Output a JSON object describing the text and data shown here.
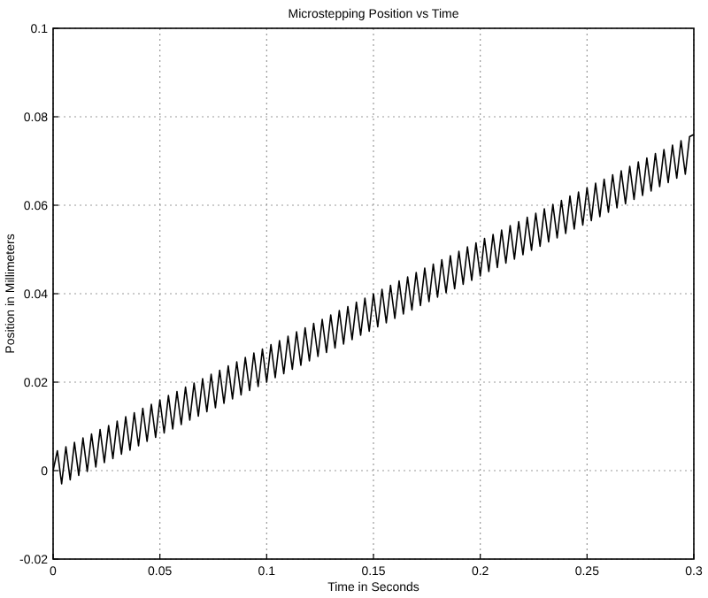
{
  "chart_data": {
    "type": "line",
    "title": "Microstepping Position vs Time",
    "xlabel": "Time in Seconds",
    "ylabel": "Position in Millimeters",
    "xlim": [
      0,
      0.3
    ],
    "xticks": [
      0,
      0.05,
      0.1,
      0.15,
      0.2,
      0.25,
      0.3
    ],
    "ylim": [
      -0.02,
      0.1
    ],
    "yticks": [
      -0.02,
      0,
      0.02,
      0.04,
      0.06,
      0.08,
      0.1
    ],
    "grid": true,
    "line_style": "solid",
    "marker": "none",
    "x": [
      0,
      0.002,
      0.004,
      0.006,
      0.008,
      0.01,
      0.012,
      0.014,
      0.016,
      0.018,
      0.02,
      0.022,
      0.024,
      0.026,
      0.028,
      0.03,
      0.032,
      0.034,
      0.036,
      0.038,
      0.04,
      0.042,
      0.044,
      0.046,
      0.048,
      0.05,
      0.052,
      0.054,
      0.056,
      0.058,
      0.06,
      0.062,
      0.064,
      0.066,
      0.068,
      0.07,
      0.072,
      0.074,
      0.076,
      0.078,
      0.08,
      0.082,
      0.084,
      0.086,
      0.088,
      0.09,
      0.092,
      0.094,
      0.096,
      0.098,
      0.1,
      0.102,
      0.104,
      0.106,
      0.108,
      0.11,
      0.112,
      0.114,
      0.116,
      0.118,
      0.12,
      0.122,
      0.124,
      0.126,
      0.128,
      0.13,
      0.132,
      0.134,
      0.136,
      0.138,
      0.14,
      0.142,
      0.144,
      0.146,
      0.148,
      0.15,
      0.152,
      0.154,
      0.156,
      0.158,
      0.16,
      0.162,
      0.164,
      0.166,
      0.168,
      0.17,
      0.172,
      0.174,
      0.176,
      0.178,
      0.18,
      0.182,
      0.184,
      0.186,
      0.188,
      0.19,
      0.192,
      0.194,
      0.196,
      0.198,
      0.2,
      0.202,
      0.204,
      0.206,
      0.208,
      0.21,
      0.212,
      0.214,
      0.216,
      0.218,
      0.22,
      0.222,
      0.224,
      0.226,
      0.228,
      0.23,
      0.232,
      0.234,
      0.236,
      0.238,
      0.24,
      0.242,
      0.244,
      0.246,
      0.248,
      0.25,
      0.252,
      0.254,
      0.256,
      0.258,
      0.26,
      0.262,
      0.264,
      0.266,
      0.268,
      0.27,
      0.272,
      0.274,
      0.276,
      0.278,
      0.28,
      0.282,
      0.284,
      0.286,
      0.288,
      0.29,
      0.292,
      0.294,
      0.296,
      0.298,
      0.3
    ],
    "series": [
      {
        "color": "#000000",
        "values": [
          0,
          0.0045,
          -0.003,
          0.0054,
          -0.0021,
          0.0064,
          -0.0011,
          0.0074,
          -0.0002,
          0.0083,
          0.0008,
          0.0093,
          0.0018,
          0.0102,
          0.0027,
          0.0112,
          0.0037,
          0.0122,
          0.0046,
          0.0131,
          0.0056,
          0.0141,
          0.0066,
          0.015,
          0.0075,
          0.016,
          0.0085,
          0.017,
          0.0094,
          0.0179,
          0.0104,
          0.0189,
          0.0114,
          0.0198,
          0.0123,
          0.0208,
          0.0133,
          0.0218,
          0.0142,
          0.0227,
          0.0152,
          0.0237,
          0.0162,
          0.0246,
          0.0171,
          0.0256,
          0.0181,
          0.0266,
          0.019,
          0.0275,
          0.02,
          0.0285,
          0.021,
          0.0294,
          0.0219,
          0.0304,
          0.0229,
          0.0314,
          0.0238,
          0.0323,
          0.0248,
          0.0333,
          0.0258,
          0.0342,
          0.0267,
          0.0352,
          0.0277,
          0.0362,
          0.0286,
          0.0371,
          0.0296,
          0.0381,
          0.0306,
          0.039,
          0.0315,
          0.04,
          0.0325,
          0.041,
          0.0334,
          0.0419,
          0.0344,
          0.0429,
          0.0354,
          0.0438,
          0.0363,
          0.0448,
          0.0373,
          0.0458,
          0.0382,
          0.0467,
          0.0392,
          0.0477,
          0.0402,
          0.0486,
          0.0411,
          0.0496,
          0.0421,
          0.0506,
          0.043,
          0.0515,
          0.044,
          0.0525,
          0.045,
          0.0534,
          0.0459,
          0.0544,
          0.0469,
          0.0554,
          0.0478,
          0.0563,
          0.0488,
          0.0573,
          0.0498,
          0.0582,
          0.0507,
          0.0592,
          0.0517,
          0.0602,
          0.0526,
          0.0611,
          0.0536,
          0.0621,
          0.0546,
          0.063,
          0.0555,
          0.064,
          0.0565,
          0.065,
          0.0574,
          0.0659,
          0.0584,
          0.0669,
          0.0594,
          0.0678,
          0.0603,
          0.0688,
          0.0613,
          0.0698,
          0.0622,
          0.0707,
          0.0632,
          0.0717,
          0.0642,
          0.0726,
          0.0651,
          0.0736,
          0.0661,
          0.0746,
          0.067,
          0.0755,
          0.076
        ]
      }
    ]
  }
}
